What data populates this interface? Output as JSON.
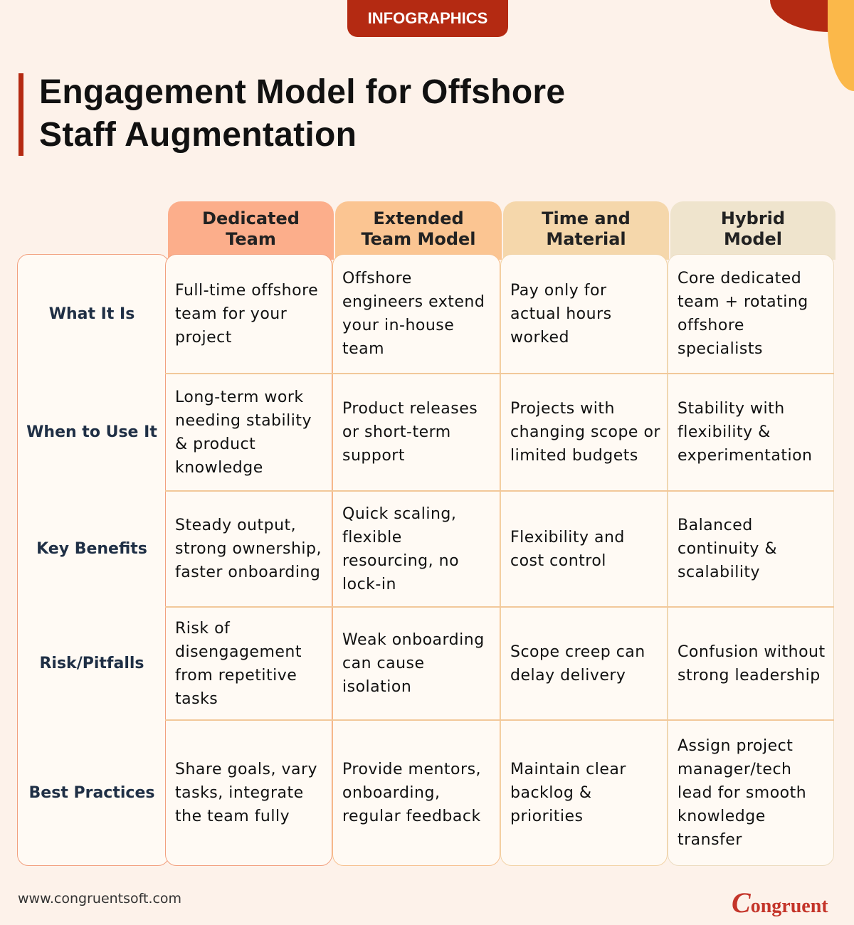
{
  "badge": "INFOGRAPHICS",
  "title": "Engagement Model for Offshore Staff Augmentation",
  "colors": {
    "accent": "#b42a12",
    "col1": "#fcae8b",
    "col2": "#fbc592",
    "col3": "#f5d7ab",
    "col4": "#efe4cd"
  },
  "columns": [
    "Dedicated\nTeam",
    "Extended\nTeam Model",
    "Time and\nMaterial",
    "Hybrid\nModel"
  ],
  "rows": [
    {
      "label": "What It Is",
      "cells": [
        "Full-time offshore team for your project",
        "Offshore engineers extend your in-house team",
        "Pay only for actual hours worked",
        "Core dedicated team + rotating offshore specialists"
      ]
    },
    {
      "label": "When to Use It",
      "cells": [
        "Long-term work needing stability & product knowledge",
        "Product releases or short-term support",
        "Projects with changing scope or limited budgets",
        "Stability with flexibility & experimentation"
      ]
    },
    {
      "label": "Key Benefits",
      "cells": [
        "Steady output, strong ownership, faster onboarding",
        "Quick scaling, flexible resourcing, no lock-in",
        "Flexibility and cost control",
        "Balanced continuity & scalability"
      ]
    },
    {
      "label": "Risk/Pitfalls",
      "cells": [
        "Risk of disengagement from repetitive tasks",
        "Weak onboarding can cause isolation",
        "Scope creep can delay delivery",
        "Confusion without strong leadership"
      ]
    },
    {
      "label": "Best Practices",
      "cells": [
        "Share goals, vary tasks, integrate the team fully",
        "Provide mentors, onboarding, regular feedback",
        "Maintain clear backlog & priorities",
        "Assign project manager/tech lead for smooth knowledge transfer"
      ]
    }
  ],
  "footer": {
    "url": "www.congruentsoft.com",
    "logo": "Congruent"
  }
}
